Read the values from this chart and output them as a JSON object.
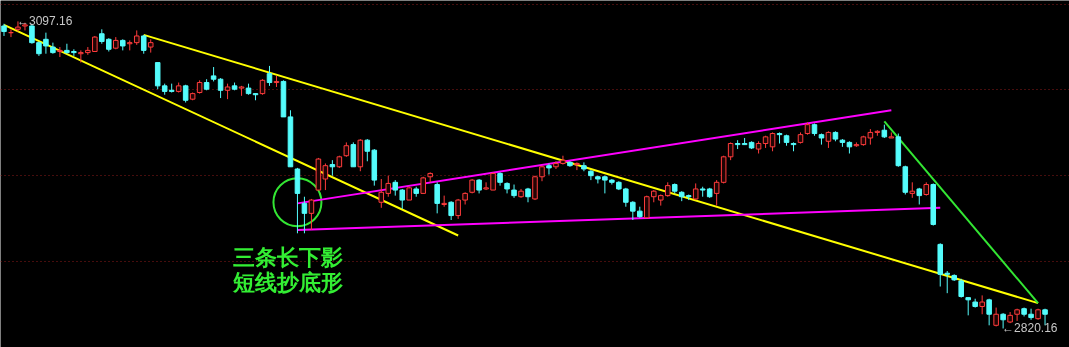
{
  "chart_data": {
    "type": "candlestick",
    "categories": [
      null,
      null,
      null,
      null,
      null,
      null,
      null,
      null,
      null,
      null,
      null,
      null,
      null,
      null,
      null,
      null,
      null,
      null,
      null,
      null,
      null,
      null,
      null,
      null,
      null,
      null,
      null,
      null,
      null,
      null,
      null,
      null,
      null,
      null,
      null,
      null,
      null,
      null,
      null,
      null,
      null,
      null,
      null,
      null,
      null,
      null,
      null,
      null,
      null,
      null,
      null,
      null,
      null,
      null,
      null,
      null,
      null,
      null,
      null,
      null,
      null,
      null,
      null,
      null,
      null,
      null,
      null,
      null,
      null,
      null,
      null,
      null,
      null,
      null,
      null,
      null,
      null,
      null,
      null,
      null,
      null,
      null,
      null,
      null,
      null,
      null,
      null,
      null,
      null,
      null,
      null,
      null,
      null,
      null,
      null,
      null,
      null,
      null,
      null,
      null,
      null,
      null,
      null,
      null,
      null,
      null,
      null,
      null,
      null,
      null,
      null,
      null,
      null,
      null,
      null,
      null,
      null,
      null,
      null,
      null,
      null,
      null,
      null,
      null,
      null,
      null,
      null,
      null,
      null,
      null,
      null,
      null,
      null,
      null,
      null,
      null,
      null,
      null,
      null,
      null,
      null,
      null,
      null,
      null,
      null,
      null,
      null,
      null,
      null,
      null
    ],
    "ohlc": [
      [
        3093,
        3095,
        3084,
        3088
      ],
      [
        3087,
        3090,
        3083,
        3087
      ],
      [
        3090,
        3097.16,
        3088,
        3092
      ],
      [
        3093,
        3096,
        3089,
        3094
      ],
      [
        3093,
        3095,
        3077,
        3078
      ],
      [
        3078,
        3079,
        3066,
        3068
      ],
      [
        3081,
        3087,
        3068,
        3075
      ],
      [
        3074,
        3078,
        3068,
        3069
      ],
      [
        3070,
        3074,
        3065,
        3071
      ],
      [
        3071,
        3077,
        3068,
        3069
      ],
      [
        3070,
        3072,
        3066,
        3069
      ],
      [
        3068,
        3071,
        3060,
        3069
      ],
      [
        3069,
        3074,
        3067,
        3071
      ],
      [
        3070,
        3084,
        3070,
        3083
      ],
      [
        3086,
        3090,
        3077,
        3079
      ],
      [
        3081,
        3082,
        3070,
        3072
      ],
      [
        3073,
        3083,
        3072,
        3080
      ],
      [
        3080,
        3081,
        3071,
        3075
      ],
      [
        3077,
        3080,
        3071,
        3078
      ],
      [
        3078,
        3089,
        3076,
        3084
      ],
      [
        3084,
        3085,
        3068,
        3071
      ],
      [
        3074,
        3081,
        3069,
        3078
      ],
      [
        3060,
        3060,
        3036,
        3039
      ],
      [
        3039,
        3041,
        3031,
        3034
      ],
      [
        3035,
        3041,
        3033,
        3034
      ],
      [
        3034,
        3042,
        3033,
        3039
      ],
      [
        3039,
        3040,
        3024,
        3026
      ],
      [
        3027,
        3033,
        3026,
        3032
      ],
      [
        3033,
        3044,
        3032,
        3042
      ],
      [
        3042,
        3045,
        3035,
        3036
      ],
      [
        3048,
        3056,
        3043,
        3045
      ],
      [
        3045,
        3046,
        3028,
        3035
      ],
      [
        3035,
        3041,
        3027,
        3038
      ],
      [
        3039,
        3042,
        3035,
        3036
      ],
      [
        3037,
        3039,
        3030,
        3038
      ],
      [
        3037,
        3041,
        3031,
        3032
      ],
      [
        3032,
        3032,
        3026,
        3031
      ],
      [
        3032,
        3045,
        3031,
        3044
      ],
      [
        3050,
        3057,
        3039,
        3042
      ],
      [
        3042,
        3048,
        3038,
        3043
      ],
      [
        3043,
        3044,
        3011,
        3011
      ],
      [
        3011,
        3017,
        2966,
        2966
      ],
      [
        2964,
        2965,
        2906,
        2942
      ],
      [
        2933,
        2939,
        2906,
        2924
      ],
      [
        2924,
        2937,
        2909,
        2936
      ],
      [
        2945,
        2974,
        2945,
        2973
      ],
      [
        2955,
        2969,
        2945,
        2967
      ],
      [
        2968,
        2972,
        2958,
        2966
      ],
      [
        2966,
        2976,
        2965,
        2975
      ],
      [
        2976,
        2988,
        2975,
        2985
      ],
      [
        2986,
        2988,
        2966,
        2966
      ],
      [
        2966,
        2991,
        2962,
        2990
      ],
      [
        2990,
        2991,
        2971,
        2980
      ],
      [
        2981,
        2982,
        2949,
        2954
      ],
      [
        2934,
        2955,
        2929,
        2943
      ],
      [
        2942,
        2958,
        2939,
        2951
      ],
      [
        2952,
        2954,
        2940,
        2945
      ],
      [
        2945,
        2946,
        2928,
        2936
      ],
      [
        2936,
        2948,
        2936,
        2947
      ],
      [
        2946,
        2948,
        2939,
        2942
      ],
      [
        2942,
        2957,
        2942,
        2956
      ],
      [
        2957,
        2961,
        2952,
        2960
      ],
      [
        2950,
        2952,
        2924,
        2933
      ],
      [
        2932,
        2940,
        2930,
        2933
      ],
      [
        2934,
        2935,
        2918,
        2922
      ],
      [
        2922,
        2937,
        2919,
        2936
      ],
      [
        2936,
        2943,
        2932,
        2942
      ],
      [
        2943,
        2955,
        2942,
        2954
      ],
      [
        2954,
        2955,
        2942,
        2945
      ],
      [
        2946,
        2952,
        2945,
        2947
      ],
      [
        2945,
        2961,
        2945,
        2960
      ],
      [
        2960,
        2961,
        2949,
        2952
      ],
      [
        2951,
        2952,
        2942,
        2946
      ],
      [
        2945,
        2950,
        2938,
        2940
      ],
      [
        2939,
        2946,
        2938,
        2944
      ],
      [
        2946,
        2947,
        2934,
        2939
      ],
      [
        2937,
        2958,
        2936,
        2957
      ],
      [
        2957,
        2967,
        2953,
        2966
      ],
      [
        2967,
        2969,
        2959,
        2965
      ],
      [
        2966,
        2971,
        2964,
        2969
      ],
      [
        2969,
        2976,
        2968,
        2972
      ],
      [
        2970,
        2971,
        2966,
        2967
      ],
      [
        2968,
        2970,
        2963,
        2969
      ],
      [
        2967,
        2970,
        2962,
        2964
      ],
      [
        2962,
        2963,
        2954,
        2958
      ],
      [
        2957,
        2958,
        2951,
        2955
      ],
      [
        2957,
        2958,
        2942,
        2954
      ],
      [
        2954,
        2955,
        2950,
        2952
      ],
      [
        2952,
        2953,
        2945,
        2946
      ],
      [
        2946,
        2947,
        2930,
        2934
      ],
      [
        2934,
        2935,
        2918,
        2926
      ],
      [
        2926,
        2930,
        2920,
        2921
      ],
      [
        2920,
        2940,
        2920,
        2939
      ],
      [
        2939,
        2945,
        2934,
        2944
      ],
      [
        2936,
        2941,
        2931,
        2940
      ],
      [
        2940,
        2952,
        2939,
        2949
      ],
      [
        2950,
        2951,
        2942,
        2944
      ],
      [
        2943,
        2944,
        2935,
        2939
      ],
      [
        2940,
        2941,
        2936,
        2939
      ],
      [
        2937,
        2951,
        2936,
        2946
      ],
      [
        2946,
        2948,
        2939,
        2945
      ],
      [
        2946,
        2947,
        2938,
        2939
      ],
      [
        2942,
        2954,
        2931,
        2952
      ],
      [
        2952,
        2976,
        2951,
        2975
      ],
      [
        2975,
        2988,
        2972,
        2987
      ],
      [
        2987,
        2990,
        2982,
        2986
      ],
      [
        2987,
        2992,
        2986,
        2986
      ],
      [
        2988,
        2989,
        2982,
        2983
      ],
      [
        2982,
        2989,
        2978,
        2987
      ],
      [
        2987,
        2994,
        2983,
        2993
      ],
      [
        2984,
        2997,
        2980,
        2996
      ],
      [
        2996,
        2997,
        2987,
        2995
      ],
      [
        2994,
        2995,
        2985,
        2988
      ],
      [
        2987,
        2988,
        2980,
        2986
      ],
      [
        2988,
        2997,
        2987,
        2995
      ],
      [
        2996,
        3006,
        2995,
        3004
      ],
      [
        3004,
        3005,
        2994,
        2996
      ],
      [
        2995,
        2996,
        2986,
        2992
      ],
      [
        2989,
        2998,
        2983,
        2997
      ],
      [
        2997,
        2998,
        2989,
        2991
      ],
      [
        2990,
        2991,
        2984,
        2988
      ],
      [
        2988,
        2989,
        2978,
        2984
      ],
      [
        2985,
        2988,
        2984,
        2986
      ],
      [
        2986,
        2994,
        2985,
        2993
      ],
      [
        2992,
        3000,
        2986,
        2997
      ],
      [
        2997,
        2999,
        2994,
        2998
      ],
      [
        2999,
        3004,
        2992,
        2993
      ],
      [
        2992,
        2997,
        2992,
        2993
      ],
      [
        2993,
        2996,
        2966,
        2967
      ],
      [
        2966,
        2967,
        2941,
        2943
      ],
      [
        2942,
        2952,
        2938,
        2944
      ],
      [
        2946,
        2947,
        2932,
        2940
      ],
      [
        2941,
        2952,
        2940,
        2950
      ],
      [
        2950,
        2951,
        2913,
        2914
      ],
      [
        2896,
        2897,
        2858,
        2869
      ],
      [
        2870,
        2872,
        2852,
        2869
      ],
      [
        2868,
        2869,
        2863,
        2864
      ],
      [
        2863,
        2865,
        2848,
        2849
      ],
      [
        2848,
        2848,
        2832,
        2846
      ],
      [
        2844,
        2847,
        2839,
        2840
      ],
      [
        2840,
        2850,
        2833,
        2844
      ],
      [
        2846,
        2847,
        2823,
        2833
      ],
      [
        2823,
        2839,
        2822,
        2833
      ],
      [
        2833,
        2834,
        2820.16,
        2828
      ],
      [
        2826,
        2835,
        2825,
        2832
      ],
      [
        2833,
        2838,
        2827,
        2837
      ],
      [
        2838,
        2839,
        2831,
        2833
      ],
      [
        2833,
        2838,
        2828,
        2830
      ],
      [
        2829,
        2838,
        2828,
        2837
      ],
      [
        2837,
        2838,
        2823,
        2833
      ]
    ],
    "series": [
      {
        "type": "line",
        "color": "#ffff00",
        "values": [
          3094,
          null,
          null,
          null,
          null,
          null,
          null,
          null,
          null,
          null,
          null,
          null,
          null,
          null,
          null,
          null,
          null,
          null,
          null,
          null,
          null,
          null,
          null,
          null,
          null,
          null,
          null,
          null,
          null,
          null,
          null,
          null,
          null,
          null,
          null,
          null,
          null,
          null,
          null,
          null,
          null,
          null,
          null,
          null,
          null,
          null,
          null,
          null,
          null,
          null,
          null,
          null,
          null,
          null,
          null,
          null,
          null,
          null,
          null,
          null,
          null,
          null,
          null,
          null,
          null,
          2904,
          null,
          null,
          null,
          null,
          null,
          null,
          null,
          null,
          null,
          null,
          null,
          null,
          null,
          null,
          null,
          null,
          null,
          null,
          null,
          null,
          null,
          null,
          null,
          null,
          null,
          null,
          null,
          null,
          null,
          null,
          null,
          null,
          null,
          null,
          null,
          null,
          null,
          null,
          null,
          null,
          null,
          null,
          null,
          null,
          null,
          null,
          null,
          null,
          null,
          null,
          null,
          null,
          null,
          null,
          null,
          null,
          null,
          null,
          null,
          null,
          null,
          null,
          null,
          null,
          null,
          null,
          null,
          null,
          null,
          null,
          null,
          null,
          null,
          null,
          null,
          null,
          null,
          null,
          null,
          null,
          null,
          null,
          null,
          null
        ]
      },
      {
        "type": "line",
        "color": "#ffff00",
        "values": [
          null,
          null,
          null,
          null,
          null,
          null,
          null,
          null,
          null,
          null,
          null,
          null,
          null,
          null,
          null,
          null,
          null,
          null,
          null,
          null,
          3085,
          null,
          null,
          null,
          null,
          null,
          null,
          null,
          null,
          null,
          null,
          null,
          null,
          null,
          null,
          null,
          null,
          null,
          null,
          null,
          null,
          null,
          null,
          null,
          null,
          null,
          null,
          null,
          null,
          null,
          null,
          null,
          null,
          null,
          null,
          null,
          null,
          null,
          null,
          null,
          null,
          null,
          null,
          null,
          null,
          null,
          null,
          null,
          null,
          null,
          null,
          null,
          null,
          null,
          null,
          null,
          null,
          null,
          null,
          null,
          null,
          null,
          null,
          null,
          null,
          null,
          null,
          null,
          null,
          null,
          null,
          null,
          null,
          null,
          null,
          null,
          null,
          null,
          null,
          null,
          null,
          null,
          null,
          null,
          null,
          null,
          null,
          null,
          null,
          null,
          null,
          null,
          null,
          null,
          null,
          null,
          null,
          null,
          null,
          null,
          null,
          null,
          null,
          null,
          null,
          null,
          null,
          null,
          null,
          null,
          null,
          null,
          null,
          null,
          null,
          null,
          null,
          null,
          null,
          null,
          null,
          null,
          null,
          null,
          null,
          null,
          null,
          null,
          2843.0,
          null
        ]
      },
      {
        "type": "line",
        "color": "#ff00ff",
        "values": [
          null,
          null,
          null,
          null,
          null,
          null,
          null,
          null,
          null,
          null,
          null,
          null,
          null,
          null,
          null,
          null,
          null,
          null,
          null,
          null,
          null,
          null,
          null,
          null,
          null,
          null,
          null,
          null,
          null,
          null,
          null,
          null,
          null,
          null,
          null,
          null,
          null,
          null,
          null,
          null,
          null,
          null,
          2933,
          null,
          null,
          null,
          null,
          null,
          null,
          null,
          null,
          null,
          null,
          null,
          null,
          null,
          null,
          null,
          null,
          null,
          null,
          null,
          null,
          null,
          null,
          null,
          null,
          null,
          null,
          null,
          null,
          null,
          null,
          null,
          null,
          null,
          null,
          null,
          null,
          null,
          null,
          null,
          null,
          null,
          null,
          null,
          null,
          null,
          null,
          null,
          null,
          null,
          null,
          null,
          null,
          null,
          null,
          null,
          null,
          null,
          null,
          null,
          null,
          null,
          null,
          null,
          null,
          null,
          null,
          null,
          null,
          null,
          null,
          null,
          null,
          null,
          null,
          null,
          null,
          null,
          null,
          null,
          null,
          null,
          null,
          null,
          null,
          3017,
          null,
          null,
          null,
          null,
          null,
          null,
          null,
          null,
          null,
          null,
          null,
          null,
          null,
          null,
          null,
          null,
          null,
          null,
          null,
          null,
          null,
          null
        ]
      },
      {
        "type": "line",
        "color": "#ff00ff",
        "values": [
          null,
          null,
          null,
          null,
          null,
          null,
          null,
          null,
          null,
          null,
          null,
          null,
          null,
          null,
          null,
          null,
          null,
          null,
          null,
          null,
          null,
          null,
          null,
          null,
          null,
          null,
          null,
          null,
          null,
          null,
          null,
          null,
          null,
          null,
          null,
          null,
          null,
          null,
          null,
          null,
          null,
          null,
          2909,
          null,
          null,
          null,
          null,
          null,
          null,
          null,
          null,
          null,
          null,
          null,
          null,
          null,
          null,
          null,
          null,
          null,
          null,
          null,
          null,
          null,
          null,
          null,
          null,
          null,
          null,
          null,
          null,
          null,
          null,
          null,
          null,
          null,
          null,
          null,
          null,
          null,
          null,
          null,
          null,
          null,
          null,
          null,
          null,
          null,
          null,
          null,
          null,
          null,
          null,
          null,
          null,
          null,
          null,
          null,
          null,
          null,
          null,
          null,
          null,
          null,
          null,
          null,
          null,
          null,
          null,
          null,
          null,
          null,
          null,
          null,
          null,
          null,
          null,
          null,
          null,
          null,
          null,
          null,
          null,
          null,
          null,
          null,
          null,
          null,
          null,
          null,
          null,
          null,
          null,
          null,
          2929,
          null,
          null,
          null,
          null,
          null,
          null,
          null,
          null,
          null,
          null,
          null,
          null,
          null,
          null,
          null
        ]
      },
      {
        "type": "line",
        "color": "#33e633",
        "values": [
          null,
          null,
          null,
          null,
          null,
          null,
          null,
          null,
          null,
          null,
          null,
          null,
          null,
          null,
          null,
          null,
          null,
          null,
          null,
          null,
          null,
          null,
          null,
          null,
          null,
          null,
          null,
          null,
          null,
          null,
          null,
          null,
          null,
          null,
          null,
          null,
          null,
          null,
          null,
          null,
          null,
          null,
          null,
          null,
          null,
          null,
          null,
          null,
          null,
          null,
          null,
          null,
          null,
          null,
          null,
          null,
          null,
          null,
          null,
          null,
          null,
          null,
          null,
          null,
          null,
          null,
          null,
          null,
          null,
          null,
          null,
          null,
          null,
          null,
          null,
          null,
          null,
          null,
          null,
          null,
          null,
          null,
          null,
          null,
          null,
          null,
          null,
          null,
          null,
          null,
          null,
          null,
          null,
          null,
          null,
          null,
          null,
          null,
          null,
          null,
          null,
          null,
          null,
          null,
          null,
          null,
          null,
          null,
          null,
          null,
          null,
          null,
          null,
          null,
          null,
          null,
          null,
          null,
          null,
          null,
          null,
          null,
          null,
          null,
          null,
          null,
          3007,
          null,
          null,
          null,
          null,
          null,
          null,
          null,
          null,
          null,
          null,
          null,
          null,
          null,
          null,
          null,
          null,
          null,
          null,
          null,
          null,
          null,
          2843.0,
          null
        ]
      }
    ],
    "ylim": [
      2803,
      3116
    ],
    "yticks": [
      {
        "value": 3112,
        "label": null
      },
      {
        "value": 3036,
        "label": null
      },
      {
        "value": 2958,
        "label": null
      },
      {
        "value": 2881,
        "label": null
      }
    ],
    "grid": "y",
    "tick_labels": false,
    "annotations": [
      "←3097.16",
      "←2820.16",
      "三条长下影",
      "短线抄底形"
    ]
  }
}
